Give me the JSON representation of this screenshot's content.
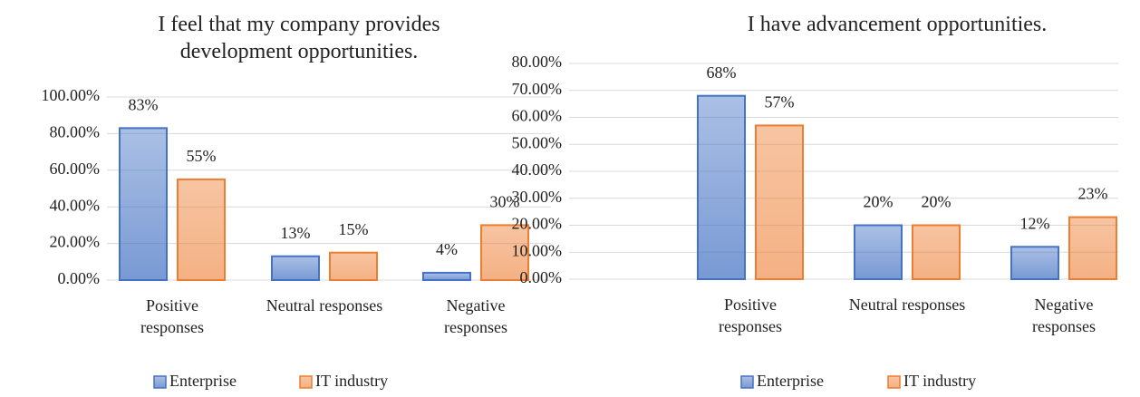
{
  "chart_data": [
    {
      "type": "bar",
      "title": "I feel that my company provides development opportunities.",
      "categories": [
        "Positive responses",
        "Neutral responses",
        "Negative responses"
      ],
      "series": [
        {
          "name": "Enterprise",
          "color": "#4472c4",
          "values": [
            83,
            13,
            4
          ],
          "value_labels": [
            "83%",
            "13%",
            "4%"
          ]
        },
        {
          "name": "IT industry",
          "color": "#ed7d31",
          "values": [
            55,
            15,
            30
          ],
          "value_labels": [
            "55%",
            "15%",
            "30%"
          ]
        }
      ],
      "ylim": [
        0,
        100
      ],
      "yticks": [
        {
          "value": 0,
          "label": "0.00%"
        },
        {
          "value": 20,
          "label": "20.00%"
        },
        {
          "value": 40,
          "label": "40.00%"
        },
        {
          "value": 60,
          "label": "60.00%"
        },
        {
          "value": 80,
          "label": "80.00%"
        },
        {
          "value": 100,
          "label": "100.00%"
        }
      ],
      "grid": true,
      "legend": "bottom"
    },
    {
      "type": "bar",
      "title": "I have advancement opportunities.",
      "categories": [
        "Positive responses",
        "Neutral responses",
        "Negative responses"
      ],
      "series": [
        {
          "name": "Enterprise",
          "color": "#4472c4",
          "values": [
            68,
            20,
            12
          ],
          "value_labels": [
            "68%",
            "20%",
            "12%"
          ]
        },
        {
          "name": "IT industry",
          "color": "#ed7d31",
          "values": [
            57,
            20,
            23
          ],
          "value_labels": [
            "57%",
            "20%",
            "23%"
          ]
        }
      ],
      "ylim": [
        0,
        80
      ],
      "yticks": [
        {
          "value": 0,
          "label": "0.00%"
        },
        {
          "value": 10,
          "label": "10.00%"
        },
        {
          "value": 20,
          "label": "20.00%"
        },
        {
          "value": 30,
          "label": "30.00%"
        },
        {
          "value": 40,
          "label": "40.00%"
        },
        {
          "value": 50,
          "label": "50.00%"
        },
        {
          "value": 60,
          "label": "60.00%"
        },
        {
          "value": 70,
          "label": "70.00%"
        },
        {
          "value": 80,
          "label": "80.00%"
        }
      ],
      "grid": true,
      "legend": "bottom"
    }
  ]
}
